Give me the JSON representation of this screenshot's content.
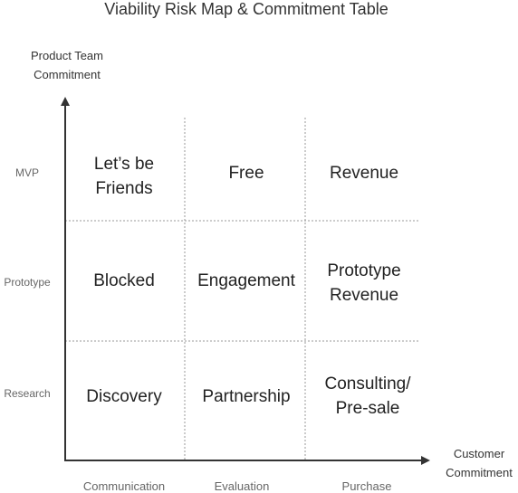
{
  "title": "Viability Risk Map & Commitment Table",
  "y_axis_title": [
    "Product Team",
    "Commitment"
  ],
  "x_axis_title": [
    "Customer",
    "Commitment"
  ],
  "rows": [
    "MVP",
    "Prototype",
    "Research"
  ],
  "columns": [
    "Communication",
    "Evaluation",
    "Purchase"
  ],
  "cells": [
    [
      [
        "Let’s be",
        "Friends"
      ],
      [
        "Free"
      ],
      [
        "Revenue"
      ]
    ],
    [
      [
        "Blocked"
      ],
      [
        "Engagement"
      ],
      [
        "Prototype",
        "Revenue"
      ]
    ],
    [
      [
        "Discovery"
      ],
      [
        "Partnership"
      ],
      [
        "Consulting/",
        "Pre-sale"
      ]
    ]
  ],
  "colors": {
    "axis": "#333333",
    "grid": "#999999",
    "axis_label": "#666666",
    "cell_text": "#222222"
  }
}
